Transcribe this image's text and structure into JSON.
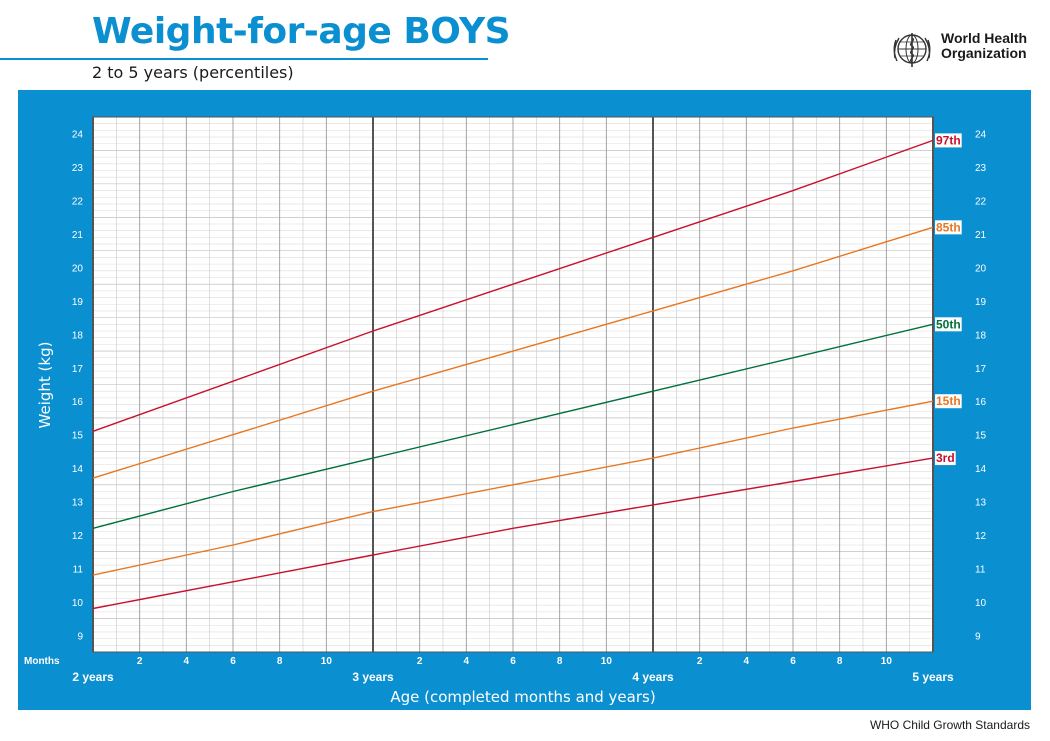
{
  "header": {
    "title": "Weight-for-age BOYS",
    "subtitle": "2 to 5 years (percentiles)",
    "org_line1": "World Health",
    "org_line2": "Organization",
    "logo_icon": "who-emblem-icon"
  },
  "footer": {
    "text": "WHO Child Growth Standards"
  },
  "colors": {
    "brand_blue": "#0a8fd0",
    "red": "#c8102e",
    "orange": "#e87722",
    "green": "#00703c"
  },
  "chart_data": {
    "type": "line",
    "title": "Weight-for-age BOYS",
    "subtitle": "2 to 5 years (percentiles)",
    "xlabel": "Age (completed months and years)",
    "ylabel": "Weight (kg)",
    "x_unit": "months",
    "xlim": [
      24,
      60
    ],
    "ylim": [
      8.5,
      24.5
    ],
    "grid": true,
    "month_label": "Months",
    "x_minor_ticks": [
      {
        "month": 26,
        "label": "2"
      },
      {
        "month": 28,
        "label": "4"
      },
      {
        "month": 30,
        "label": "6"
      },
      {
        "month": 32,
        "label": "8"
      },
      {
        "month": 34,
        "label": "10"
      },
      {
        "month": 38,
        "label": "2"
      },
      {
        "month": 40,
        "label": "4"
      },
      {
        "month": 42,
        "label": "6"
      },
      {
        "month": 44,
        "label": "8"
      },
      {
        "month": 46,
        "label": "10"
      },
      {
        "month": 50,
        "label": "2"
      },
      {
        "month": 52,
        "label": "4"
      },
      {
        "month": 54,
        "label": "6"
      },
      {
        "month": 56,
        "label": "8"
      },
      {
        "month": 58,
        "label": "10"
      }
    ],
    "x_year_ticks": [
      {
        "month": 24,
        "label": "2 years"
      },
      {
        "month": 36,
        "label": "3 years"
      },
      {
        "month": 48,
        "label": "4 years"
      },
      {
        "month": 60,
        "label": "5 years"
      }
    ],
    "y_ticks": [
      9,
      10,
      11,
      12,
      13,
      14,
      15,
      16,
      17,
      18,
      19,
      20,
      21,
      22,
      23,
      24
    ],
    "x": [
      24,
      30,
      36,
      42,
      48,
      54,
      60
    ],
    "series": [
      {
        "name": "97th",
        "color": "#c8102e",
        "values": [
          15.1,
          16.6,
          18.1,
          19.5,
          20.9,
          22.3,
          23.8
        ]
      },
      {
        "name": "85th",
        "color": "#e87722",
        "values": [
          13.7,
          15.0,
          16.3,
          17.5,
          18.7,
          19.9,
          21.2
        ]
      },
      {
        "name": "50th",
        "color": "#00703c",
        "values": [
          12.2,
          13.3,
          14.3,
          15.3,
          16.3,
          17.3,
          18.3
        ]
      },
      {
        "name": "15th",
        "color": "#e87722",
        "values": [
          10.8,
          11.7,
          12.7,
          13.5,
          14.3,
          15.2,
          16.0
        ]
      },
      {
        "name": "3rd",
        "color": "#c8102e",
        "values": [
          9.8,
          10.6,
          11.4,
          12.2,
          12.9,
          13.6,
          14.3
        ]
      }
    ]
  }
}
